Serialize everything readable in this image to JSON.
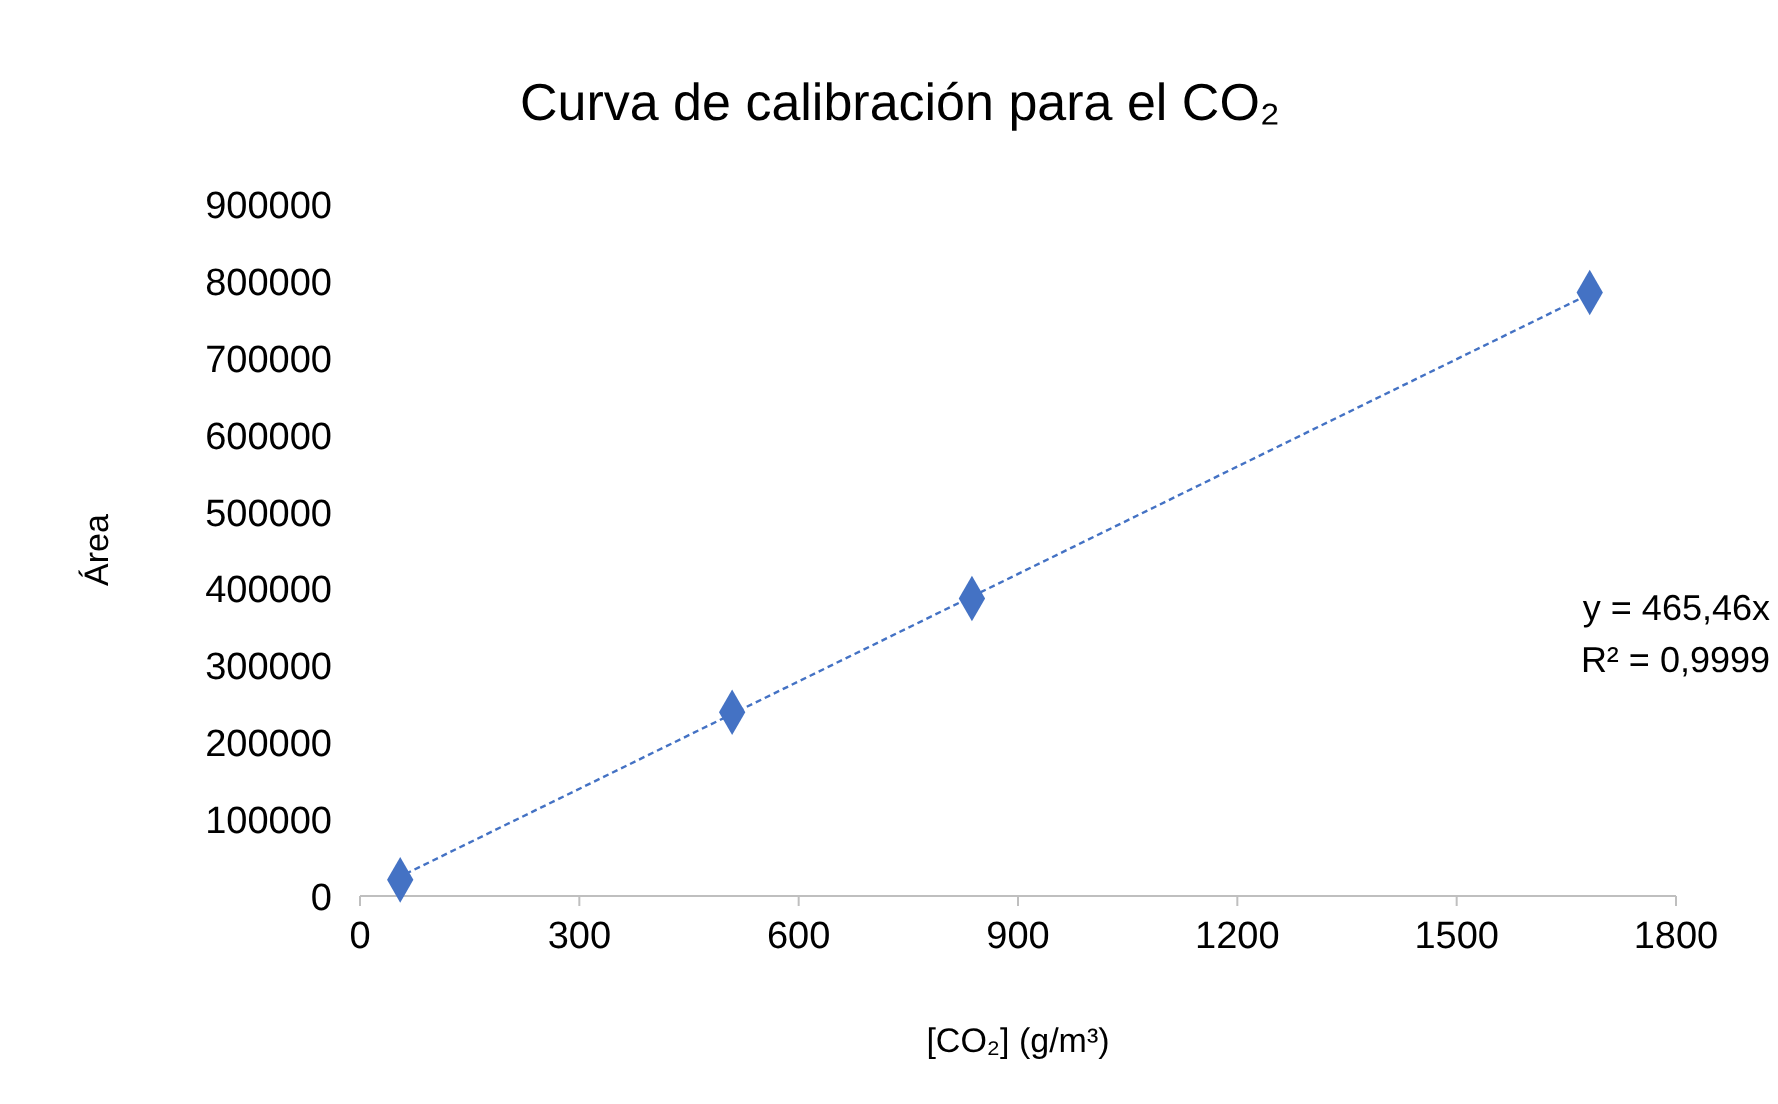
{
  "chart_data": {
    "type": "scatter",
    "title": "Curva de calibración para el CO₂",
    "xlabel": "[CO₂] (g/m³)",
    "ylabel": "Área",
    "x": [
      55,
      509,
      837,
      1682
    ],
    "series": [
      {
        "type": "scatter",
        "color": "#4472c4",
        "marker": "diamond",
        "values": [
          21000,
          239000,
          387000,
          785000
        ]
      },
      {
        "type": "line",
        "color": "#4472c4",
        "line_style": "dashed",
        "marker": "none",
        "x": [
          50,
          1682
        ],
        "values": [
          23000,
          783000
        ]
      }
    ],
    "xlim": [
      0,
      1800
    ],
    "xticks": [
      0,
      300,
      600,
      900,
      1200,
      1500,
      1800
    ],
    "ylim": [
      0,
      900000
    ],
    "yticks": [
      0,
      100000,
      200000,
      300000,
      400000,
      500000,
      600000,
      700000,
      800000,
      900000
    ],
    "annotations": [
      "y = 465,46x",
      "R² = 0,9999"
    ]
  }
}
